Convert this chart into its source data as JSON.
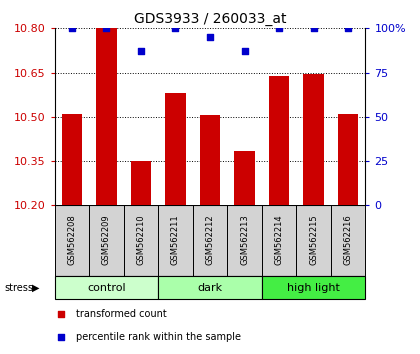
{
  "title": "GDS3933 / 260033_at",
  "samples": [
    "GSM562208",
    "GSM562209",
    "GSM562210",
    "GSM562211",
    "GSM562212",
    "GSM562213",
    "GSM562214",
    "GSM562215",
    "GSM562216"
  ],
  "bar_values": [
    10.51,
    10.8,
    10.35,
    10.58,
    10.505,
    10.385,
    10.64,
    10.645,
    10.51
  ],
  "percentile_values": [
    100,
    100,
    87,
    100,
    95,
    87,
    100,
    100,
    100
  ],
  "groups": [
    {
      "label": "control",
      "indices": [
        0,
        1,
        2
      ],
      "color": "#ccffcc"
    },
    {
      "label": "dark",
      "indices": [
        3,
        4,
        5
      ],
      "color": "#aaffaa"
    },
    {
      "label": "high light",
      "indices": [
        6,
        7,
        8
      ],
      "color": "#44ee44"
    }
  ],
  "ylim": [
    10.2,
    10.8
  ],
  "y2lim": [
    0,
    100
  ],
  "yticks": [
    10.2,
    10.35,
    10.5,
    10.65,
    10.8
  ],
  "y2ticks": [
    0,
    25,
    50,
    75,
    100
  ],
  "y2ticklabels": [
    "0",
    "25",
    "50",
    "75",
    "100%"
  ],
  "bar_color": "#cc0000",
  "percentile_color": "#0000cc",
  "bar_width": 0.6,
  "sample_bg_color": "#d3d3d3",
  "legend_red_label": "transformed count",
  "legend_blue_label": "percentile rank within the sample",
  "stress_label": "stress",
  "ytick_color": "#cc0000",
  "y2tick_color": "#0000cc",
  "title_fontsize": 10,
  "tick_fontsize": 8,
  "sample_fontsize": 6,
  "group_fontsize": 8
}
